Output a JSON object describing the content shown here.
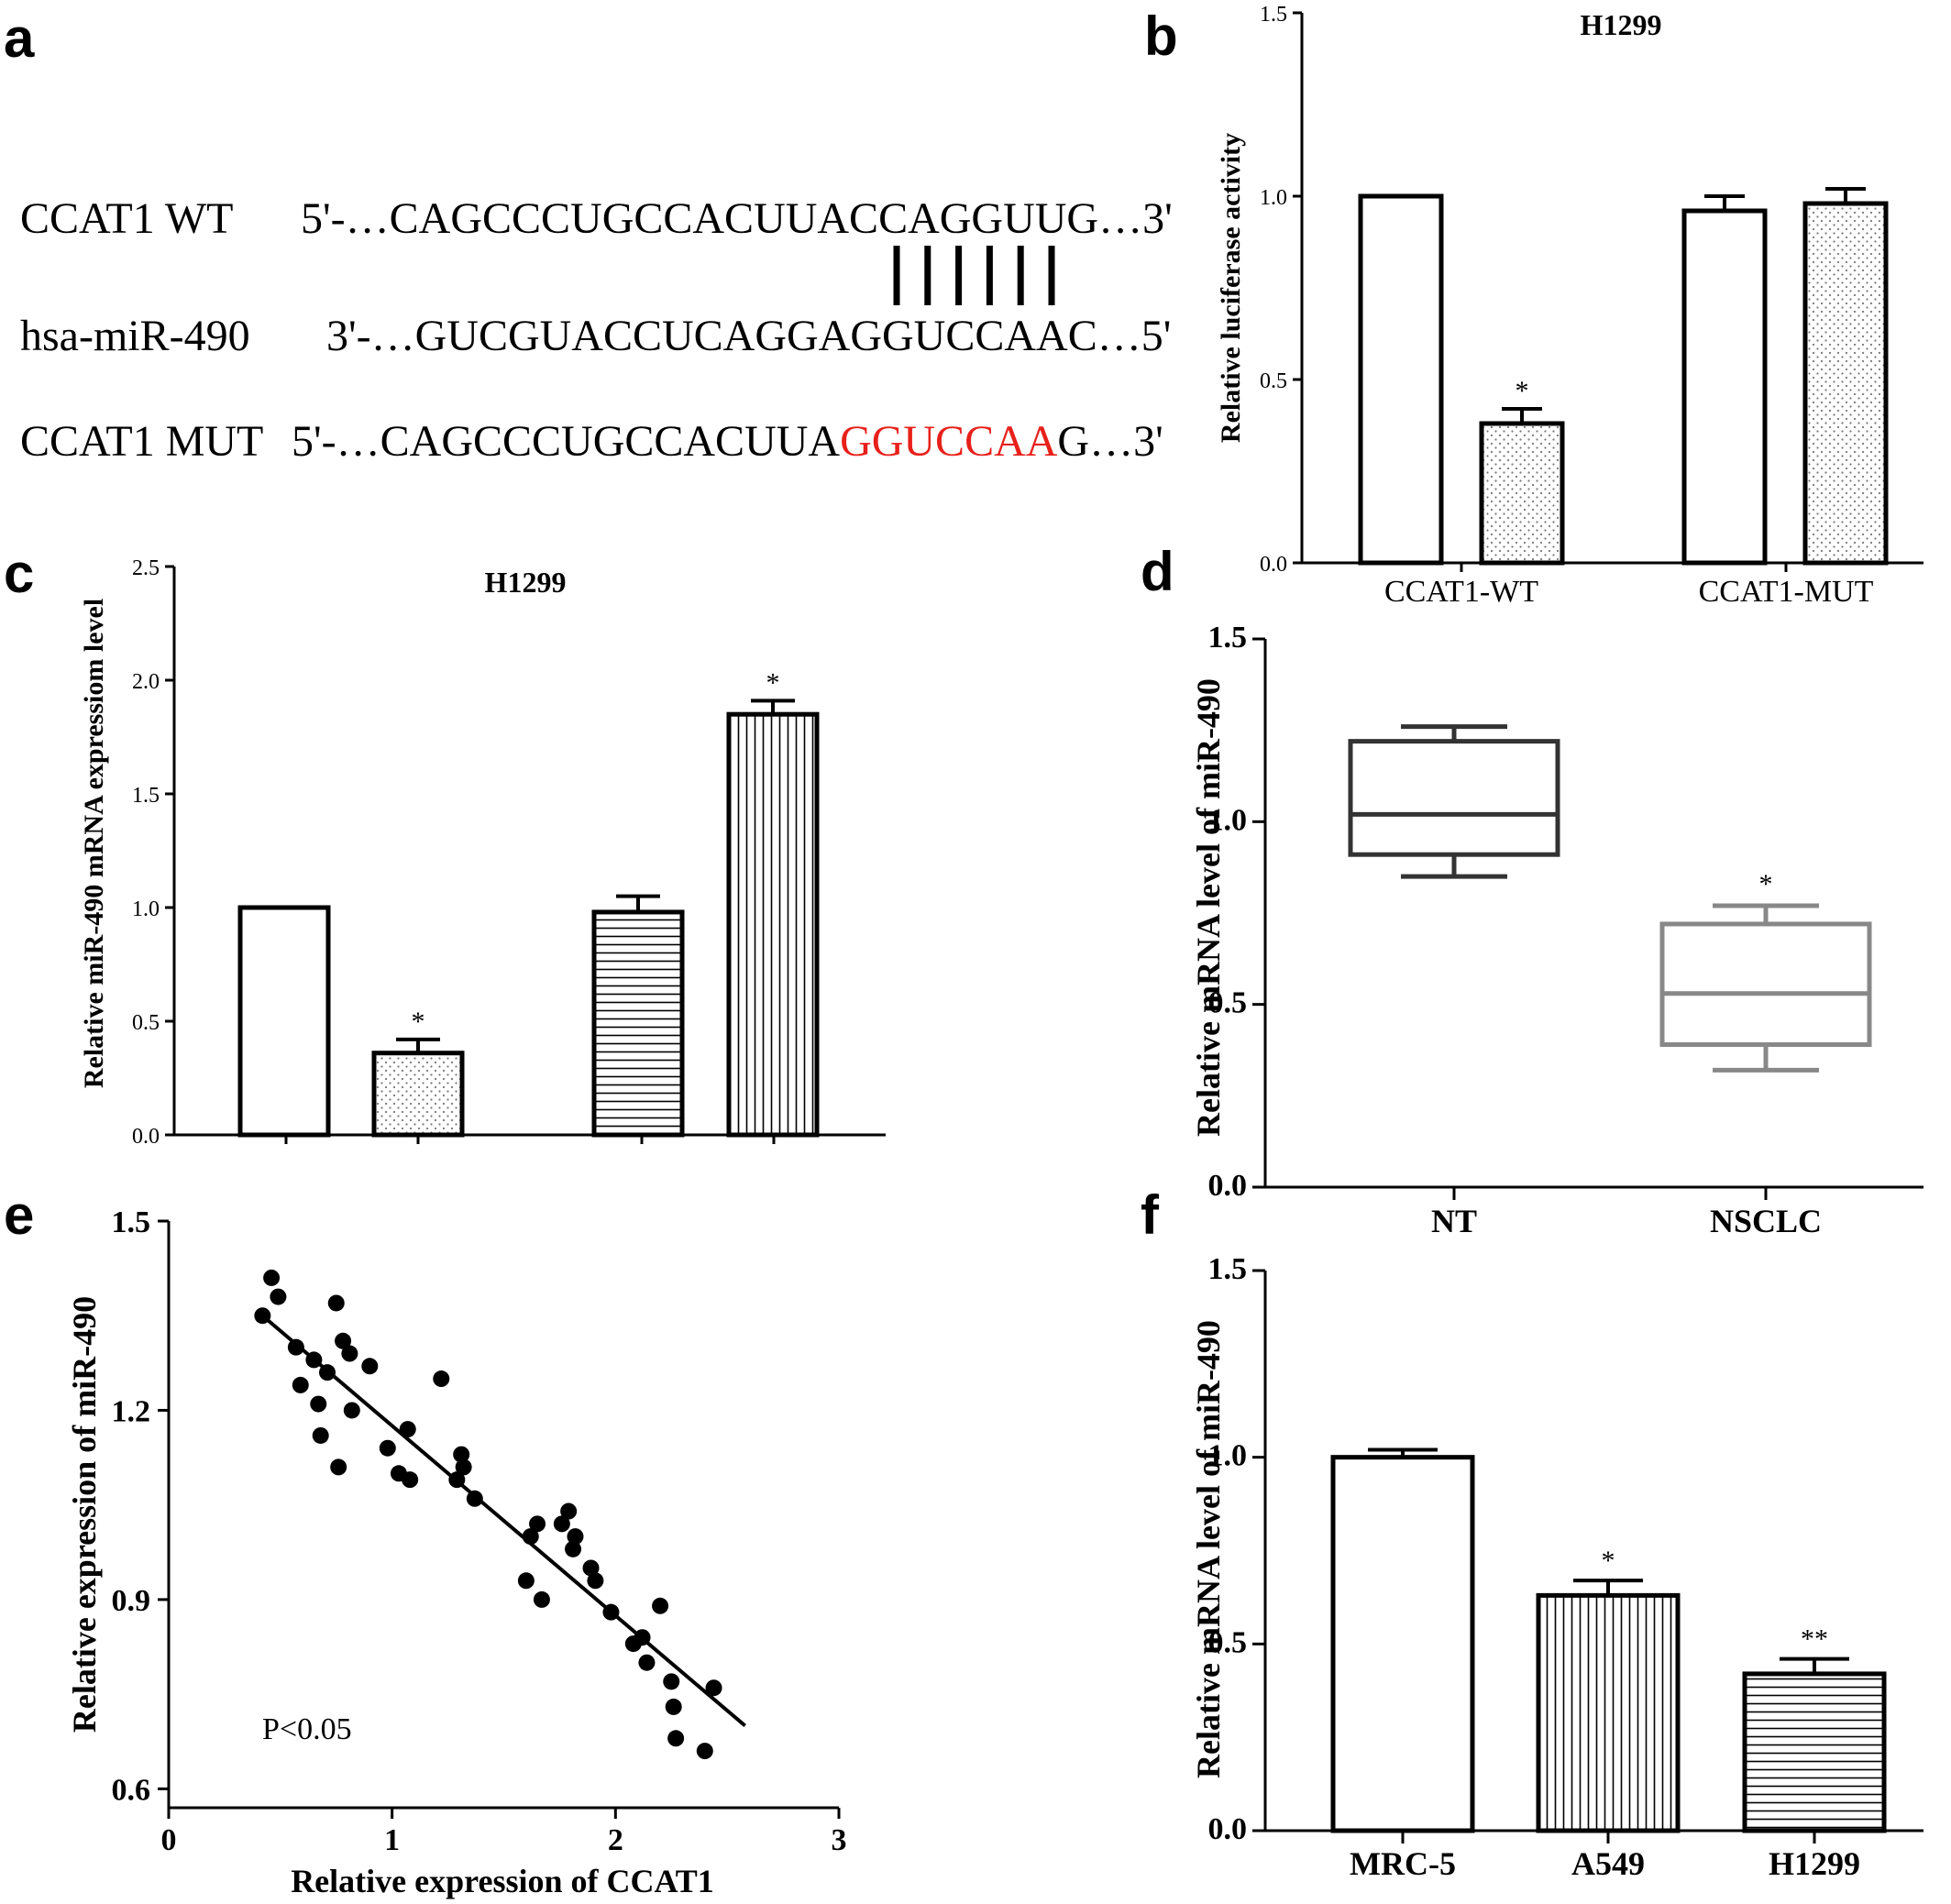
{
  "panel_a": {
    "letter": "a",
    "rows": [
      {
        "label": "CCAT1 WT",
        "seq": "5'-…CAGCCCUGCCACUUACCAGGUUG…3'"
      },
      {
        "label": "hsa-miR-490",
        "seq": "3'-…GUCGUACCUCAGGAGGUCCAAC…5'"
      },
      {
        "label": "CCAT1 MUT",
        "seq_pre": "5'-…CAGCCCUGCCACUUA",
        "seq_mut": "GGUCCAA",
        "seq_post": "G…3'"
      }
    ],
    "pairing_lines": 6,
    "mut_color": "#e8201a"
  },
  "chart_data": [
    {
      "id": "b",
      "letter": "b",
      "type": "bar",
      "title": "H1299",
      "ylabel": "Relative luciferase activity",
      "ylim": [
        0,
        1.5
      ],
      "yticks": [
        "0.0",
        "0.5",
        "1.0",
        "1.5"
      ],
      "groups": [
        "CCAT1-WT",
        "CCAT1-MUT"
      ],
      "bars": [
        {
          "group": 0,
          "value": 1.0,
          "error": 0,
          "pattern": "none",
          "sig": ""
        },
        {
          "group": 0,
          "value": 0.38,
          "error": 0.04,
          "pattern": "dots",
          "sig": "*"
        },
        {
          "group": 1,
          "value": 0.96,
          "error": 0.04,
          "pattern": "none",
          "sig": ""
        },
        {
          "group": 1,
          "value": 0.98,
          "error": 0.04,
          "pattern": "dots",
          "sig": ""
        }
      ]
    },
    {
      "id": "c",
      "letter": "c",
      "type": "bar",
      "title": "H1299",
      "ylabel": "Relative miR-490 mRNA expressiom level",
      "ylim": [
        0,
        2.5
      ],
      "yticks": [
        "0.0",
        "0.5",
        "1.0",
        "1.5",
        "2.0",
        "2.5"
      ],
      "bars": [
        {
          "value": 1.0,
          "error": 0,
          "pattern": "none",
          "sig": ""
        },
        {
          "value": 0.36,
          "error": 0.06,
          "pattern": "dots",
          "sig": "*"
        },
        {
          "value": 0.98,
          "error": 0.07,
          "pattern": "hlines",
          "sig": ""
        },
        {
          "value": 1.85,
          "error": 0.06,
          "pattern": "vlines",
          "sig": "*"
        }
      ]
    },
    {
      "id": "d",
      "letter": "d",
      "type": "box",
      "ylabel": "Relative mRNA level of miR-490",
      "ylim": [
        0,
        1.5
      ],
      "yticks": [
        "0.0",
        "0.5",
        "1.0",
        "1.5"
      ],
      "categories": [
        "NT",
        "NSCLC"
      ],
      "boxes": [
        {
          "min": 0.85,
          "q1": 0.91,
          "median": 1.02,
          "q3": 1.22,
          "max": 1.26,
          "color": "#333333",
          "sig": ""
        },
        {
          "min": 0.32,
          "q1": 0.39,
          "median": 0.53,
          "q3": 0.72,
          "max": 0.77,
          "color": "#888888",
          "sig": "*"
        }
      ]
    },
    {
      "id": "e",
      "letter": "e",
      "type": "scatter",
      "xlabel": "Relative expression of CCAT1",
      "ylabel": "Relative expression of miR-490",
      "xlim": [
        0,
        3
      ],
      "ylim": [
        0.57,
        1.5
      ],
      "xticks": [
        "0",
        "1",
        "2",
        "3"
      ],
      "yticks": [
        "0.6",
        "0.9",
        "1.2",
        "1.5"
      ],
      "annotation": "P<0.05",
      "fit": {
        "x0": 0.42,
        "y0": 1.35,
        "x1": 2.58,
        "y1": 0.7
      },
      "points": [
        [
          0.42,
          1.35
        ],
        [
          0.46,
          1.41
        ],
        [
          0.49,
          1.38
        ],
        [
          0.57,
          1.3
        ],
        [
          0.59,
          1.24
        ],
        [
          0.65,
          1.28
        ],
        [
          0.67,
          1.21
        ],
        [
          0.68,
          1.16
        ],
        [
          0.71,
          1.26
        ],
        [
          0.75,
          1.37
        ],
        [
          0.76,
          1.11
        ],
        [
          0.78,
          1.31
        ],
        [
          0.81,
          1.29
        ],
        [
          0.82,
          1.2
        ],
        [
          0.9,
          1.27
        ],
        [
          0.98,
          1.14
        ],
        [
          1.03,
          1.1
        ],
        [
          1.07,
          1.17
        ],
        [
          1.08,
          1.09
        ],
        [
          1.22,
          1.25
        ],
        [
          1.29,
          1.09
        ],
        [
          1.31,
          1.13
        ],
        [
          1.32,
          1.11
        ],
        [
          1.37,
          1.06
        ],
        [
          1.6,
          0.93
        ],
        [
          1.62,
          1.0
        ],
        [
          1.65,
          1.02
        ],
        [
          1.67,
          0.9
        ],
        [
          1.76,
          1.02
        ],
        [
          1.79,
          1.04
        ],
        [
          1.81,
          0.98
        ],
        [
          1.82,
          1.0
        ],
        [
          1.89,
          0.95
        ],
        [
          1.91,
          0.93
        ],
        [
          1.98,
          0.88
        ],
        [
          2.08,
          0.83
        ],
        [
          2.12,
          0.84
        ],
        [
          2.14,
          0.8
        ],
        [
          2.2,
          0.89
        ],
        [
          2.25,
          0.77
        ],
        [
          2.26,
          0.73
        ],
        [
          2.27,
          0.68
        ],
        [
          2.4,
          0.66
        ],
        [
          2.44,
          0.76
        ]
      ]
    },
    {
      "id": "f",
      "letter": "f",
      "type": "bar",
      "ylabel": "Relative mRNA level of miR-490",
      "ylim": [
        0,
        1.5
      ],
      "yticks": [
        "0.0",
        "0.5",
        "1.0",
        "1.5"
      ],
      "categories": [
        "MRC-5",
        "A549",
        "H1299"
      ],
      "bars": [
        {
          "value": 1.0,
          "error": 0.02,
          "pattern": "none",
          "sig": ""
        },
        {
          "value": 0.63,
          "error": 0.04,
          "pattern": "vlines",
          "sig": "*"
        },
        {
          "value": 0.42,
          "error": 0.04,
          "pattern": "hlines",
          "sig": "**"
        }
      ]
    }
  ]
}
